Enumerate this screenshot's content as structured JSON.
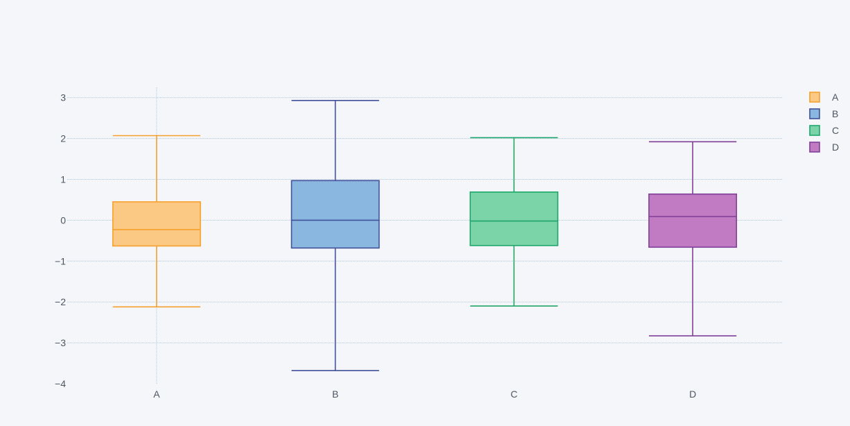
{
  "chart_data": {
    "type": "box",
    "title": "",
    "xlabel": "",
    "ylabel": "",
    "categories": [
      "A",
      "B",
      "C",
      "D"
    ],
    "ylim": [
      -4,
      3.25
    ],
    "y_ticks": [
      3,
      2,
      1,
      0,
      -1,
      -2,
      -3,
      -4
    ],
    "y_tick_labels": [
      "3",
      "2",
      "1",
      "0",
      "−1",
      "−2",
      "−3",
      "−4"
    ],
    "grid": true,
    "legend_position": "top-right",
    "series": [
      {
        "name": "A",
        "color": "#f5a02c",
        "fill": "#fbc984",
        "whisker_low": -2.12,
        "q1": -0.63,
        "median": -0.23,
        "q3": 0.45,
        "whisker_high": 2.07
      },
      {
        "name": "B",
        "color": "#40509a",
        "fill": "#8ab7df",
        "whisker_low": -3.68,
        "q1": -0.68,
        "median": 0.0,
        "q3": 0.97,
        "whisker_high": 2.93
      },
      {
        "name": "C",
        "color": "#1ea66a",
        "fill": "#7ad4a8",
        "whisker_low": -2.1,
        "q1": -0.62,
        "median": -0.02,
        "q3": 0.69,
        "whisker_high": 2.02
      },
      {
        "name": "D",
        "color": "#7f3f98",
        "fill": "#c07bc2",
        "whisker_low": -2.83,
        "q1": -0.66,
        "median": 0.09,
        "q3": 0.64,
        "whisker_high": 1.92
      }
    ]
  }
}
